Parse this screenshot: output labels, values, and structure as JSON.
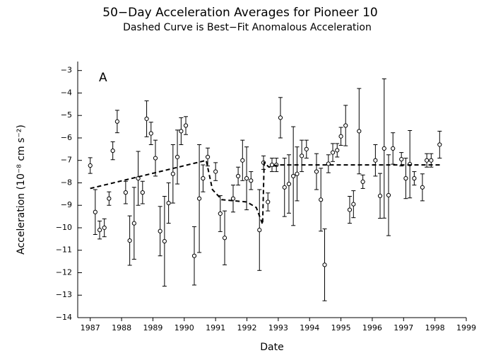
{
  "chart_data": {
    "type": "scatter",
    "title": "50−Day Acceleration Averages for Pioneer 10",
    "subtitle": "Dashed Curve is Best−Fit Anomalous Acceleration",
    "xlabel": "Date",
    "ylabel": "Acceleration (10⁻⁸ cm s⁻²)",
    "annotation": "A",
    "color": "#000000",
    "xlim": [
      1986.6,
      1999
    ],
    "ylim": [
      -14,
      -2.6
    ],
    "xticks": [
      1987,
      1988,
      1989,
      1990,
      1991,
      1992,
      1993,
      1994,
      1995,
      1996,
      1997,
      1998,
      1999
    ],
    "yticks": [
      {
        "value": -3,
        "label": "−3"
      },
      {
        "value": -4,
        "label": "−4"
      },
      {
        "value": -5,
        "label": "−5"
      },
      {
        "value": -6,
        "label": "−6"
      },
      {
        "value": -7,
        "label": "−7"
      },
      {
        "value": -8,
        "label": "−8"
      },
      {
        "value": -9,
        "label": "−9"
      },
      {
        "value": -10,
        "label": "−10"
      },
      {
        "value": -11,
        "label": "−11"
      },
      {
        "value": -12,
        "label": "−12"
      },
      {
        "value": -13,
        "label": "−13"
      },
      {
        "value": -14,
        "label": "−14"
      }
    ],
    "points": {
      "x": [
        1987.0,
        1987.16,
        1987.3,
        1987.45,
        1987.6,
        1987.72,
        1987.86,
        1988.13,
        1988.26,
        1988.4,
        1988.53,
        1988.67,
        1988.8,
        1988.94,
        1989.08,
        1989.23,
        1989.37,
        1989.5,
        1989.64,
        1989.78,
        1989.9,
        1990.05,
        1990.32,
        1990.48,
        1990.6,
        1990.75,
        1991.0,
        1991.15,
        1991.29,
        1991.56,
        1991.72,
        1991.86,
        1991.99,
        1992.13,
        1992.4,
        1992.53,
        1992.67,
        1992.8,
        1992.94,
        1993.07,
        1993.2,
        1993.34,
        1993.48,
        1993.6,
        1993.75,
        1993.9,
        1994.22,
        1994.36,
        1994.48,
        1994.6,
        1994.74,
        1994.88,
        1995.0,
        1995.15,
        1995.28,
        1995.4,
        1995.58,
        1995.7,
        1996.1,
        1996.25,
        1996.38,
        1996.52,
        1996.66,
        1996.93,
        1997.07,
        1997.2,
        1997.34,
        1997.6,
        1997.74,
        1997.88,
        1998.15
      ],
      "values": [
        -7.23,
        -9.3,
        -10.1,
        -10.0,
        -8.7,
        -6.57,
        -5.27,
        -8.43,
        -10.57,
        -9.8,
        -7.8,
        -8.43,
        -5.15,
        -5.8,
        -6.9,
        -10.15,
        -10.6,
        -8.9,
        -7.6,
        -6.85,
        -5.7,
        -5.45,
        -11.25,
        -8.7,
        -7.8,
        -6.85,
        -7.5,
        -9.37,
        -10.45,
        -8.7,
        -7.7,
        -7.0,
        -7.8,
        -7.9,
        -10.1,
        -7.1,
        -8.85,
        -7.2,
        -7.2,
        -5.1,
        -8.2,
        -8.05,
        -7.7,
        -7.6,
        -6.8,
        -6.5,
        -7.5,
        -8.75,
        -11.65,
        -7.15,
        -6.65,
        -6.55,
        -5.93,
        -5.45,
        -9.2,
        -8.95,
        -5.7,
        -7.95,
        -7.0,
        -8.58,
        -6.47,
        -8.55,
        -6.47,
        -6.95,
        -7.8,
        -7.17,
        -7.8,
        -8.2,
        -7.0,
        -7.0,
        -6.3
      ],
      "errors": [
        0.35,
        1.0,
        0.4,
        0.4,
        0.3,
        0.4,
        0.5,
        0.5,
        1.1,
        1.6,
        1.2,
        0.5,
        0.8,
        0.5,
        0.8,
        1.1,
        2.0,
        0.9,
        1.3,
        1.2,
        0.6,
        0.4,
        1.3,
        2.4,
        0.6,
        0.4,
        0.4,
        0.8,
        1.2,
        0.6,
        0.4,
        0.9,
        1.4,
        0.4,
        1.8,
        0.3,
        0.4,
        0.3,
        0.3,
        0.9,
        1.3,
        1.3,
        2.2,
        1.2,
        0.7,
        0.4,
        0.8,
        1.4,
        1.6,
        0.4,
        0.4,
        0.3,
        0.4,
        0.9,
        0.6,
        0.6,
        1.9,
        0.3,
        0.7,
        1.0,
        3.1,
        1.8,
        0.7,
        0.3,
        0.9,
        1.5,
        0.3,
        0.6,
        0.3,
        0.3,
        0.6
      ]
    },
    "curve": {
      "style": "dashed",
      "x": [
        1987.0,
        1990.7,
        1990.9,
        1991.2,
        1992.0,
        1992.3,
        1992.5,
        1992.55,
        1992.7,
        1993.0,
        1998.2
      ],
      "values": [
        -8.25,
        -7.0,
        -8.3,
        -8.75,
        -8.85,
        -9.1,
        -9.85,
        -7.1,
        -7.3,
        -7.2,
        -7.2
      ]
    }
  }
}
